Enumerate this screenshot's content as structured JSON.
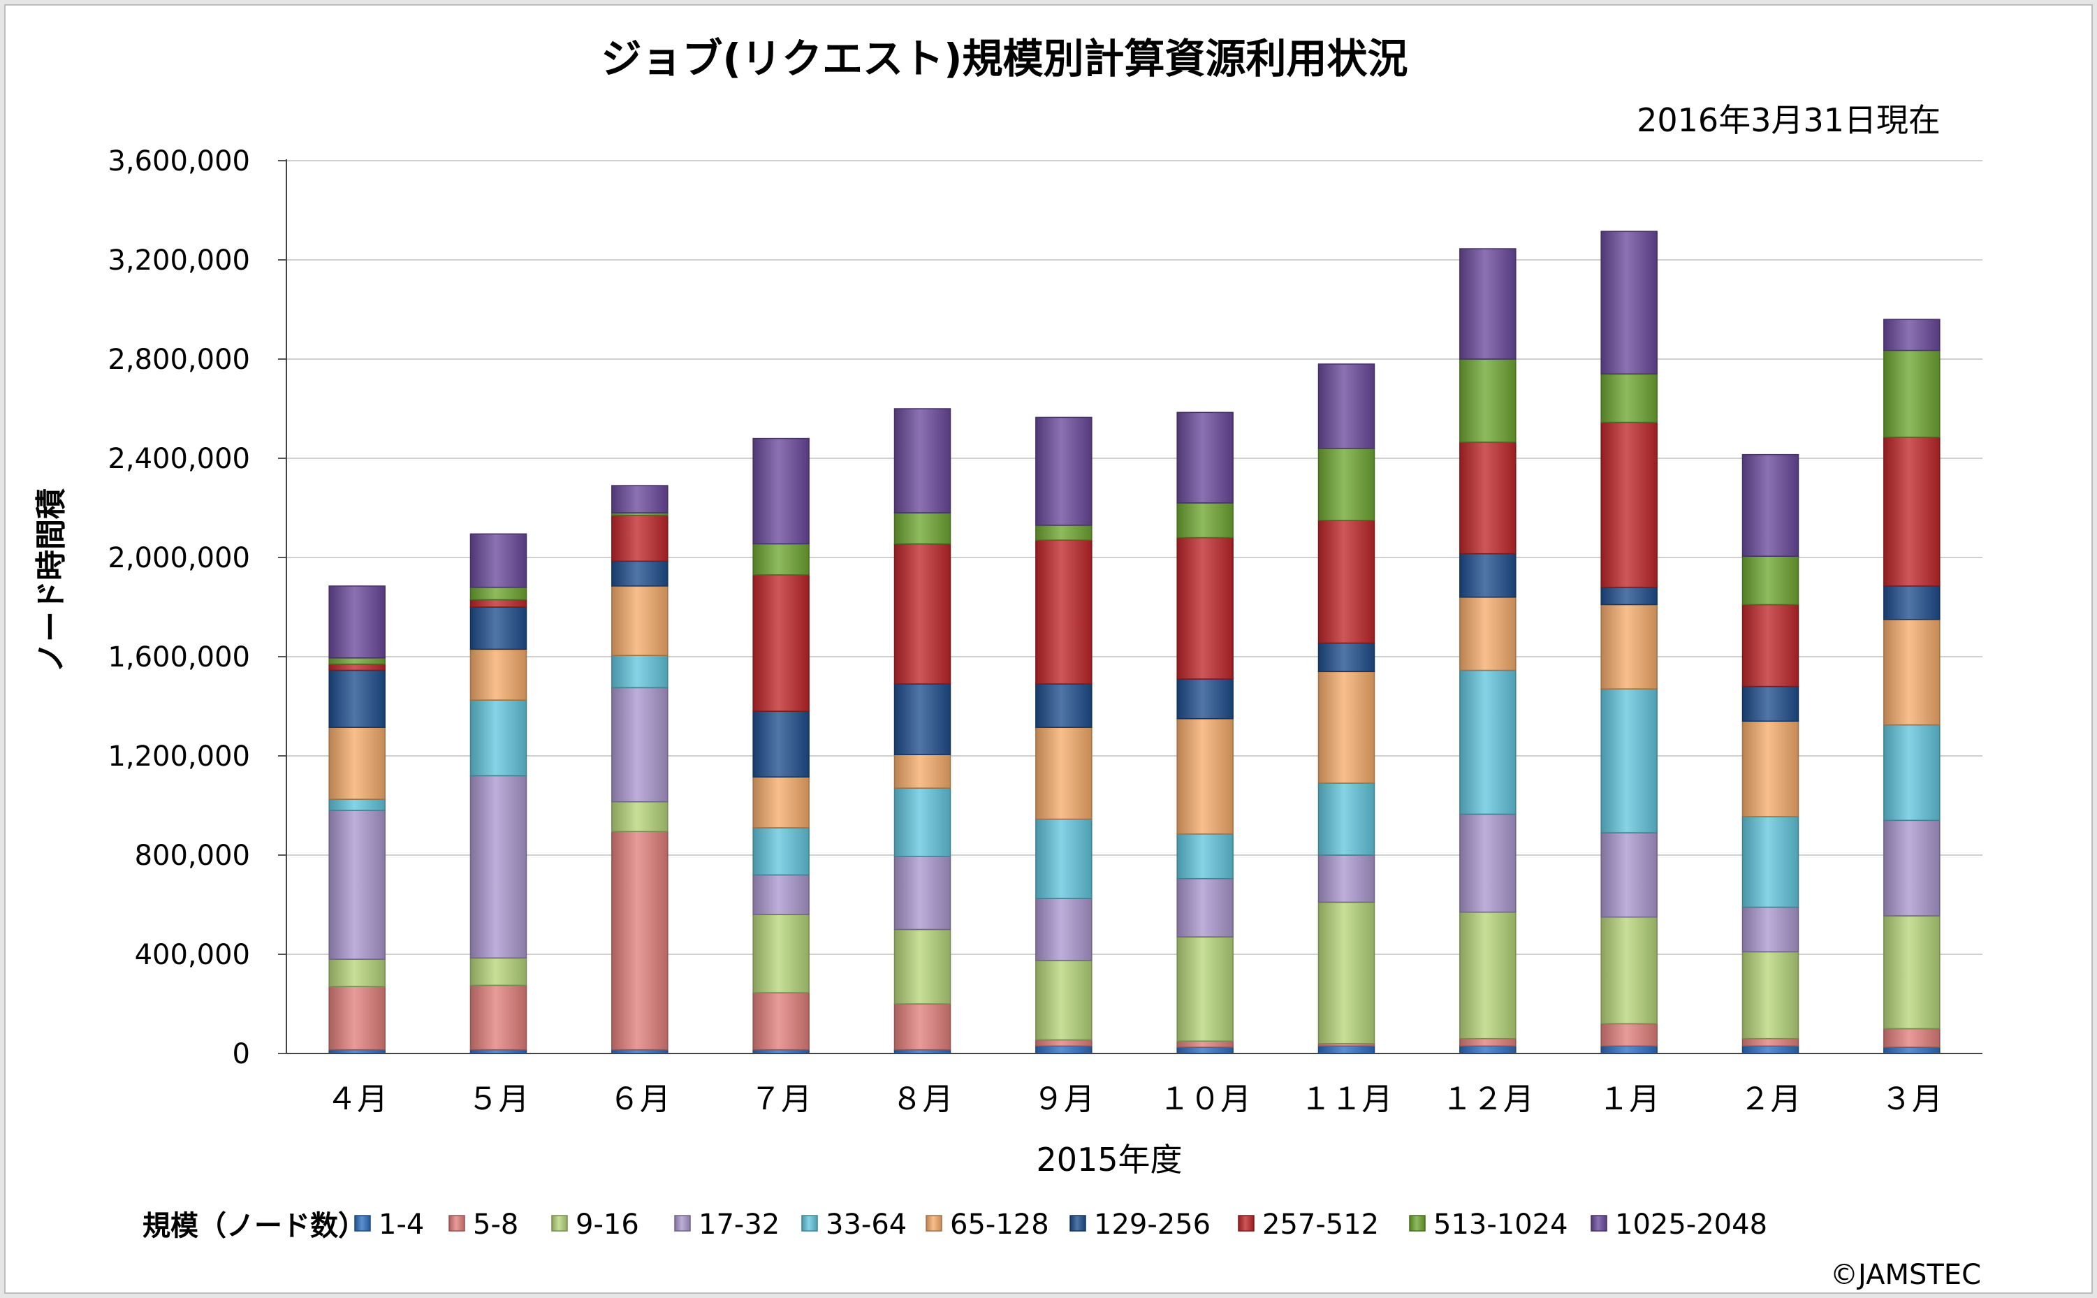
{
  "chart_data": {
    "type": "bar",
    "stacked": true,
    "title": "ジョブ(リクエスト)規模別計算資源利用状況",
    "subtitle": "2016年3月31日現在",
    "xlabel": "2015年度",
    "ylabel": "ノード時間積",
    "ylim": [
      0,
      3600000
    ],
    "yticks": [
      0,
      400000,
      800000,
      1200000,
      1600000,
      2000000,
      2400000,
      2800000,
      3200000,
      3600000
    ],
    "ytick_labels": [
      "0",
      "400,000",
      "800,000",
      "1,200,000",
      "1,600,000",
      "2,000,000",
      "2,400,000",
      "2,800,000",
      "3,200,000",
      "3,600,000"
    ],
    "grid": true,
    "legend_position": "bottom",
    "legend_title": "規模（ノード数）",
    "categories": [
      "４月",
      "５月",
      "６月",
      "７月",
      "８月",
      "９月",
      "１０月",
      "１１月",
      "１２月",
      "１月",
      "２月",
      "３月"
    ],
    "series": [
      {
        "name": "1-4",
        "color": "#2e6fc0",
        "values": [
          15000,
          15000,
          15000,
          15000,
          15000,
          30000,
          25000,
          30000,
          30000,
          30000,
          30000,
          25000
        ]
      },
      {
        "name": "5-8",
        "color": "#e2807c",
        "values": [
          255000,
          260000,
          880000,
          230000,
          185000,
          25000,
          25000,
          10000,
          30000,
          90000,
          30000,
          75000
        ]
      },
      {
        "name": "9-16",
        "color": "#b7d67a",
        "values": [
          110000,
          110000,
          120000,
          315000,
          300000,
          320000,
          420000,
          570000,
          510000,
          430000,
          350000,
          455000
        ]
      },
      {
        "name": "17-32",
        "color": "#ab98cf",
        "values": [
          600000,
          735000,
          460000,
          160000,
          295000,
          250000,
          235000,
          190000,
          395000,
          340000,
          180000,
          385000
        ]
      },
      {
        "name": "33-64",
        "color": "#63c7de",
        "values": [
          45000,
          305000,
          130000,
          190000,
          275000,
          320000,
          180000,
          290000,
          580000,
          580000,
          365000,
          385000
        ]
      },
      {
        "name": "65-128",
        "color": "#f6ad6c",
        "values": [
          290000,
          205000,
          280000,
          205000,
          135000,
          370000,
          465000,
          450000,
          295000,
          340000,
          385000,
          425000
        ]
      },
      {
        "name": "129-256",
        "color": "#1f4f8e",
        "values": [
          230000,
          170000,
          100000,
          265000,
          285000,
          175000,
          160000,
          115000,
          175000,
          70000,
          140000,
          135000
        ]
      },
      {
        "name": "257-512",
        "color": "#c0272a",
        "values": [
          25000,
          30000,
          185000,
          550000,
          565000,
          580000,
          570000,
          495000,
          450000,
          665000,
          330000,
          600000
        ]
      },
      {
        "name": "513-1024",
        "color": "#6fa832",
        "values": [
          25000,
          50000,
          10000,
          125000,
          125000,
          60000,
          140000,
          290000,
          335000,
          195000,
          195000,
          350000
        ]
      },
      {
        "name": "1025-2048",
        "color": "#6a4a9c",
        "values": [
          290000,
          215000,
          110000,
          425000,
          420000,
          435000,
          365000,
          340000,
          445000,
          575000,
          410000,
          125000
        ]
      }
    ]
  },
  "credit": "©JAMSTEC"
}
